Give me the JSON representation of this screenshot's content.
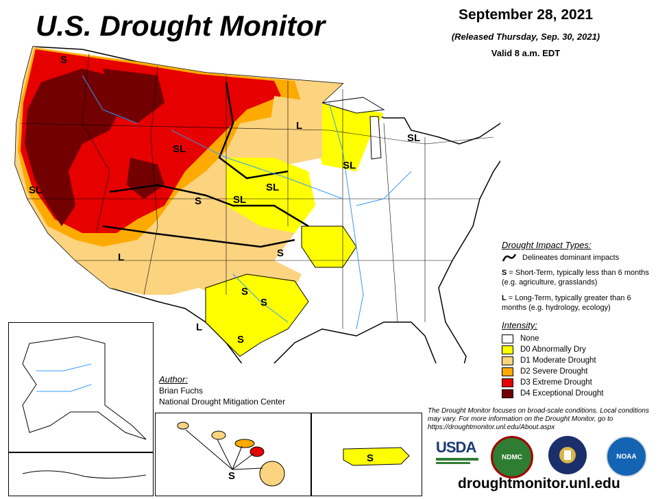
{
  "header": {
    "title": "U.S. Drought Monitor",
    "date": "September 28, 2021",
    "released": "(Released Thursday, Sep. 30, 2021)",
    "valid": "Valid 8 a.m. EDT"
  },
  "map_labels": {
    "region_labels": [
      "S",
      "SL",
      "SL",
      "SL",
      "L",
      "SL",
      "SL",
      "S",
      "SL",
      "S",
      "L",
      "S",
      "S",
      "L",
      "S",
      "SL",
      "L"
    ],
    "hawaii_label": "S",
    "puerto_rico_label": "S"
  },
  "legend": {
    "impact_title": "Drought Impact Types:",
    "delineates": "Delineates dominant impacts",
    "short_term_key": "S",
    "short_term_text": " = Short-Term, typically less than 6 months (e.g. agriculture, grasslands)",
    "long_term_key": "L",
    "long_term_text": " = Long-Term, typically greater than 6 months (e.g. hydrology, ecology)",
    "intensity_title": "Intensity:",
    "intensity": [
      {
        "label": "None",
        "color": "#ffffff"
      },
      {
        "label": "D0 Abnormally Dry",
        "color": "#ffff00"
      },
      {
        "label": "D1 Moderate Drought",
        "color": "#fcd37f"
      },
      {
        "label": "D2 Severe Drought",
        "color": "#ffaa00"
      },
      {
        "label": "D3 Extreme Drought",
        "color": "#e60000"
      },
      {
        "label": "D4 Exceptional Drought",
        "color": "#730000"
      }
    ]
  },
  "author": {
    "heading": "Author:",
    "name": "Brian Fuchs",
    "org": "National Drought Mitigation Center"
  },
  "note": "The Drought Monitor focuses on broad-scale conditions. Local conditions may vary. For more information on the Drought Monitor, go to https://droughtmonitor.unl.edu/About.aspx",
  "logos": {
    "usda": "USDA",
    "ndmc": "NDMC",
    "noaa": "NOAA"
  },
  "url": "droughtmonitor.unl.edu"
}
